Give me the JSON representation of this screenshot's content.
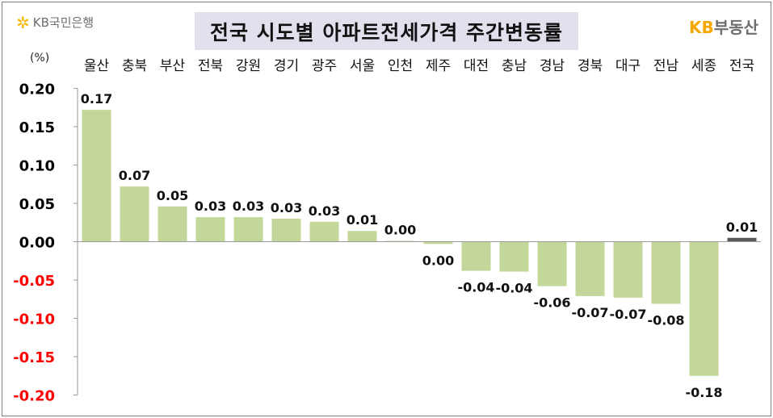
{
  "header": {
    "bank_logo_text": "KB국민은행",
    "bank_logo_icon": "kb-star-icon",
    "title": "전국 시도별 아파트전세가격 주간변동률",
    "brand_kb": "KB",
    "brand_rest": "부동산"
  },
  "colors": {
    "title_bg": "#e4dfec",
    "bar": "#c4d79b",
    "highlight_bar": "#595959",
    "negative_tick": "#ff0000",
    "positive_tick": "#000000"
  },
  "chart_data": {
    "type": "bar",
    "unit": "(%)",
    "categories": [
      "울산",
      "충북",
      "부산",
      "전북",
      "강원",
      "경기",
      "광주",
      "서울",
      "인천",
      "제주",
      "대전",
      "충남",
      "경남",
      "경북",
      "대구",
      "전남",
      "세종",
      "전국"
    ],
    "values": [
      0.17,
      0.07,
      0.05,
      0.03,
      0.03,
      0.03,
      0.03,
      0.01,
      0.0,
      0.0,
      -0.04,
      -0.04,
      -0.06,
      -0.07,
      -0.07,
      -0.08,
      -0.18,
      0.01
    ],
    "labels": [
      "0.17",
      "0.07",
      "0.05",
      "0.03",
      "0.03",
      "0.03",
      "0.03",
      "0.01",
      "0.00",
      "0.00",
      "-0.04",
      "-0.04",
      "-0.06",
      "-0.07",
      "-0.07",
      "-0.08",
      "-0.18",
      "0.01"
    ],
    "bar_values": [
      0.172,
      0.072,
      0.046,
      0.032,
      0.032,
      0.03,
      0.026,
      0.014,
      0.001,
      -0.003,
      -0.038,
      -0.039,
      -0.058,
      -0.071,
      -0.073,
      -0.081,
      -0.175,
      0.005
    ],
    "highlight_index": 17,
    "ylim": [
      -0.2,
      0.2
    ],
    "yticks": [
      "0.20",
      "0.15",
      "0.10",
      "0.05",
      "0.00",
      "-0.05",
      "-0.10",
      "-0.15",
      "-0.20"
    ],
    "ytick_values": [
      0.2,
      0.15,
      0.1,
      0.05,
      0.0,
      -0.05,
      -0.1,
      -0.15,
      -0.2
    ],
    "category_position": "top",
    "grid": false
  }
}
